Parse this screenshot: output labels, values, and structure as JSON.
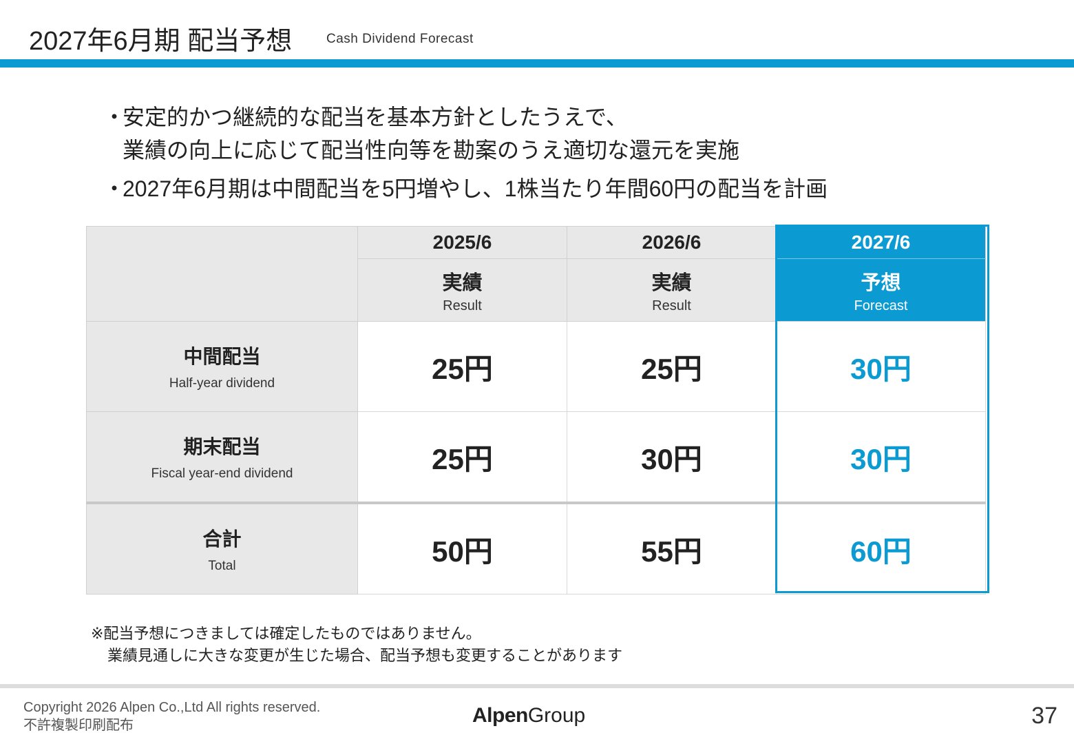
{
  "header": {
    "title": "2027年6月期 配当予想",
    "subtitle": "Cash Dividend Forecast"
  },
  "bullets": [
    {
      "marker": "・",
      "lines": [
        "安定的かつ継続的な配当を基本方針としたうえで、",
        "業績の向上に応じて配当性向等を勘案のうえ適切な還元を実施"
      ]
    },
    {
      "marker": "・",
      "lines": [
        "2027年6月期は中間配当を5円増やし、1株当たり年間60円の配当を計画"
      ]
    }
  ],
  "table": {
    "columns": [
      {
        "year": "2025/6",
        "type_jp": "実績",
        "type_en": "Result"
      },
      {
        "year": "2026/6",
        "type_jp": "実績",
        "type_en": "Result"
      },
      {
        "year": "2027/6",
        "type_jp": "予想",
        "type_en": "Forecast"
      }
    ],
    "rows": [
      {
        "label_jp": "中間配当",
        "label_en": "Half-year dividend",
        "values": [
          "25円",
          "25円",
          "30円"
        ]
      },
      {
        "label_jp": "期末配当",
        "label_en": "Fiscal year-end dividend",
        "values": [
          "25円",
          "30円",
          "30円"
        ]
      },
      {
        "label_jp": "合計",
        "label_en": "Total",
        "values": [
          "50円",
          "55円",
          "60円"
        ]
      }
    ]
  },
  "notes": {
    "line1": "※配当予想につきましては確定したものではありません。",
    "line2": "業績見通しに大きな変更が生じた場合、配当予想も変更することがあります"
  },
  "footer": {
    "copyright": "Copyright 2026 Alpen Co.,Ltd All rights reserved.",
    "notice": "不許複製印刷配布",
    "logo_bold": "Alpen",
    "logo_regular": "Group",
    "page_number": "37"
  },
  "colors": {
    "accent": "#0b9ad1",
    "header_gray": "#e8e8e8",
    "text": "#222222"
  }
}
